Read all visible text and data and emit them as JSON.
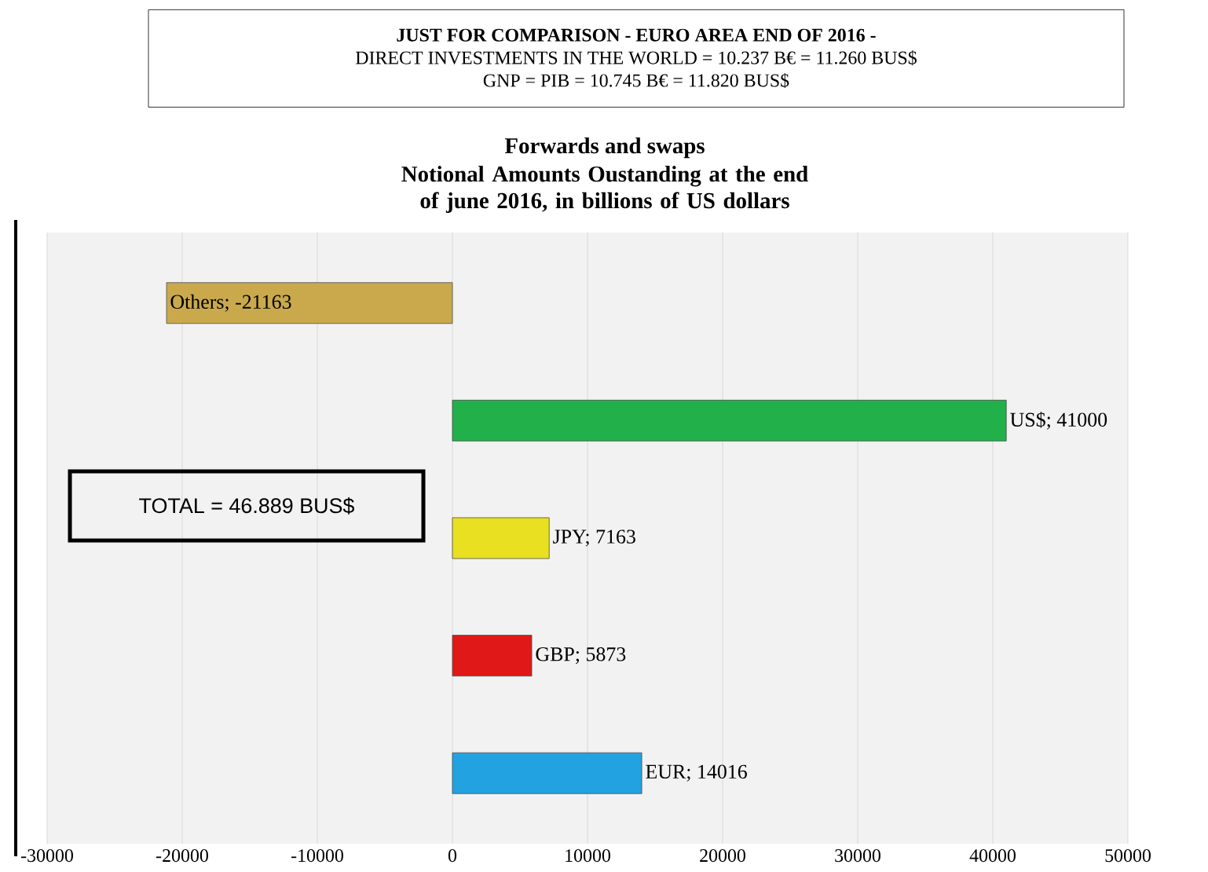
{
  "chart_data": {
    "type": "bar",
    "orientation": "horizontal",
    "title": "Forwards and swaps",
    "subtitle": "Notional Amounts Oustanding at the end of june 2016, in billions of US dollars",
    "categories": [
      null,
      null,
      null,
      null,
      null
    ],
    "values": [
      -21163,
      41000,
      7163,
      5873,
      14016
    ],
    "colors": [
      "#c9a94c",
      "#22b04a",
      "#e8e020",
      "#e01818",
      "#22a2e0"
    ],
    "value_labels": [
      "Others; -21163",
      "US$; 41000",
      "JPY; 7163",
      "GBP; 5873",
      "EUR; 14016"
    ],
    "xlim": [
      -30000,
      50000
    ],
    "xticks": [
      -30000,
      -20000,
      -10000,
      0,
      10000,
      20000,
      30000,
      40000,
      50000
    ],
    "grid": "x",
    "tick_labels": "x",
    "annotations": [
      "**JUST FOR COMPARISON - EURO AREA END OF 2016 -**",
      "DIRECT INVESTMENTS IN THE WORLD = 10.237 B€ = 11.260 BUS$",
      "GNP = PIB = 10.745 B€ = 11.820 BUS$",
      "TOTAL = 46.889 BUS$"
    ]
  }
}
